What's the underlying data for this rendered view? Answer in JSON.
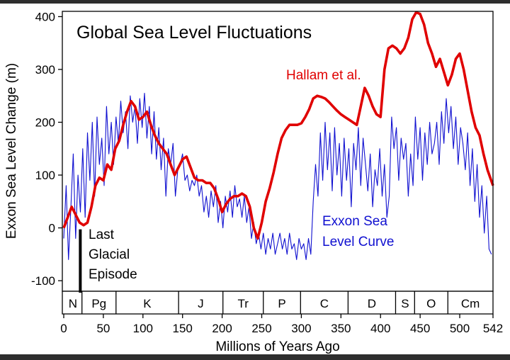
{
  "chart_data": {
    "type": "line",
    "title": "Global Sea Level Fluctuations",
    "xlabel": "Millions of Years Ago",
    "ylabel": "Exxon Sea Level Change (m)",
    "xlim": [
      0,
      542
    ],
    "ylim": [
      -120,
      410
    ],
    "x_ticks": [
      0,
      50,
      100,
      150,
      200,
      250,
      300,
      350,
      400,
      450,
      500,
      542
    ],
    "y_ticks": [
      -100,
      0,
      100,
      200,
      300,
      400
    ],
    "grid": false,
    "series": [
      {
        "name": "Hallam et al.",
        "color": "#e00000",
        "x": [
          0,
          5,
          10,
          15,
          20,
          25,
          30,
          35,
          40,
          45,
          50,
          55,
          60,
          65,
          70,
          75,
          80,
          85,
          90,
          95,
          100,
          105,
          110,
          115,
          120,
          125,
          130,
          135,
          140,
          145,
          150,
          155,
          160,
          165,
          170,
          175,
          180,
          185,
          190,
          195,
          200,
          205,
          210,
          215,
          220,
          225,
          230,
          235,
          240,
          245,
          250,
          255,
          260,
          265,
          270,
          275,
          280,
          285,
          290,
          295,
          300,
          305,
          310,
          315,
          320,
          325,
          330,
          335,
          340,
          345,
          350,
          355,
          360,
          365,
          370,
          375,
          380,
          385,
          390,
          395,
          400,
          405,
          410,
          415,
          420,
          425,
          430,
          435,
          440,
          445,
          450,
          455,
          460,
          465,
          470,
          475,
          480,
          485,
          490,
          495,
          500,
          505,
          510,
          515,
          520,
          525,
          530,
          535,
          542
        ],
        "values": [
          0,
          20,
          40,
          25,
          10,
          5,
          10,
          40,
          80,
          95,
          90,
          120,
          110,
          150,
          165,
          195,
          220,
          240,
          230,
          205,
          210,
          220,
          195,
          175,
          160,
          150,
          140,
          120,
          100,
          115,
          130,
          135,
          115,
          95,
          90,
          90,
          85,
          85,
          75,
          55,
          30,
          45,
          55,
          60,
          60,
          65,
          60,
          40,
          0,
          -20,
          10,
          50,
          75,
          105,
          140,
          170,
          185,
          195,
          195,
          195,
          198,
          210,
          225,
          245,
          250,
          248,
          245,
          238,
          230,
          222,
          215,
          210,
          205,
          200,
          195,
          230,
          265,
          250,
          230,
          215,
          210,
          300,
          340,
          345,
          340,
          330,
          340,
          360,
          395,
          408,
          405,
          385,
          350,
          330,
          305,
          320,
          295,
          270,
          290,
          320,
          330,
          300,
          260,
          220,
          190,
          175,
          140,
          110,
          80
        ]
      },
      {
        "name": "Exxon Sea Level Curve",
        "color": "#1010d0",
        "x": [
          0,
          3,
          6,
          9,
          12,
          15,
          18,
          21,
          24,
          27,
          30,
          33,
          36,
          39,
          42,
          45,
          48,
          51,
          54,
          57,
          60,
          63,
          66,
          69,
          72,
          75,
          78,
          81,
          84,
          87,
          90,
          93,
          96,
          99,
          102,
          105,
          108,
          111,
          114,
          117,
          120,
          123,
          126,
          129,
          132,
          135,
          138,
          141,
          144,
          147,
          150,
          153,
          156,
          159,
          162,
          165,
          168,
          171,
          174,
          177,
          180,
          183,
          186,
          189,
          192,
          195,
          198,
          201,
          204,
          207,
          210,
          213,
          216,
          219,
          222,
          225,
          228,
          231,
          234,
          237,
          240,
          243,
          246,
          249,
          252,
          255,
          258,
          261,
          264,
          267,
          270,
          273,
          276,
          279,
          282,
          285,
          288,
          291,
          294,
          297,
          300,
          303,
          306,
          309,
          312,
          315,
          318,
          321,
          324,
          327,
          330,
          333,
          336,
          339,
          342,
          345,
          348,
          351,
          354,
          357,
          360,
          363,
          366,
          369,
          372,
          375,
          378,
          381,
          384,
          387,
          390,
          393,
          396,
          399,
          402,
          405,
          408,
          411,
          414,
          417,
          420,
          423,
          426,
          429,
          432,
          435,
          438,
          441,
          444,
          447,
          450,
          453,
          456,
          459,
          462,
          465,
          468,
          471,
          474,
          477,
          480,
          483,
          486,
          489,
          492,
          495,
          498,
          501,
          504,
          507,
          510,
          513,
          516,
          519,
          522,
          525,
          528,
          531,
          534,
          537,
          540
        ],
        "values": [
          -20,
          80,
          -60,
          40,
          140,
          -20,
          100,
          30,
          150,
          20,
          180,
          90,
          200,
          60,
          210,
          120,
          170,
          80,
          230,
          140,
          200,
          120,
          210,
          160,
          240,
          180,
          220,
          150,
          250,
          200,
          230,
          160,
          245,
          190,
          255,
          170,
          230,
          140,
          220,
          130,
          190,
          110,
          170,
          60,
          150,
          120,
          160,
          60,
          110,
          120,
          140,
          90,
          100,
          70,
          90,
          80,
          100,
          60,
          80,
          30,
          60,
          20,
          70,
          40,
          80,
          10,
          50,
          0,
          60,
          30,
          70,
          20,
          80,
          40,
          55,
          20,
          60,
          10,
          40,
          -20,
          10,
          -30,
          -10,
          -40,
          -10,
          -50,
          -20,
          -40,
          -10,
          -50,
          -30,
          -10,
          -40,
          -20,
          -50,
          -10,
          -40,
          -30,
          -60,
          -20,
          -40,
          -30,
          -60,
          -20,
          -50,
          50,
          120,
          60,
          180,
          90,
          200,
          110,
          180,
          70,
          190,
          100,
          160,
          60,
          170,
          90,
          150,
          40,
          160,
          110,
          190,
          80,
          170,
          120,
          70,
          140,
          40,
          110,
          80,
          150,
          60,
          120,
          20,
          60,
          210,
          150,
          190,
          90,
          170,
          130,
          160,
          60,
          140,
          80,
          210,
          130,
          190,
          90,
          180,
          120,
          200,
          140,
          160,
          200,
          120,
          220,
          160,
          245,
          180,
          230,
          150,
          210,
          120,
          190,
          160,
          110,
          180,
          80,
          150,
          50,
          120,
          20,
          80,
          -10,
          60,
          -40,
          -50
        ]
      }
    ],
    "series_labels": {
      "hallam": "Hallam et al.",
      "exxon_line1": "Exxon Sea",
      "exxon_line2": "Level Curve"
    },
    "annotation": {
      "line1": "Last",
      "line2": "Glacial",
      "line3": "Episode",
      "range": [
        -120,
        0
      ],
      "at_x": 20
    },
    "periods": [
      {
        "label": "N",
        "start": 0,
        "end": 23
      },
      {
        "label": "Pg",
        "start": 23,
        "end": 66
      },
      {
        "label": "K",
        "start": 66,
        "end": 145
      },
      {
        "label": "J",
        "start": 145,
        "end": 201
      },
      {
        "label": "Tr",
        "start": 201,
        "end": 252
      },
      {
        "label": "P",
        "start": 252,
        "end": 299
      },
      {
        "label": "C",
        "start": 299,
        "end": 359
      },
      {
        "label": "D",
        "start": 359,
        "end": 419
      },
      {
        "label": "S",
        "start": 419,
        "end": 443
      },
      {
        "label": "O",
        "start": 443,
        "end": 485
      },
      {
        "label": "Cm",
        "start": 485,
        "end": 542
      }
    ]
  }
}
